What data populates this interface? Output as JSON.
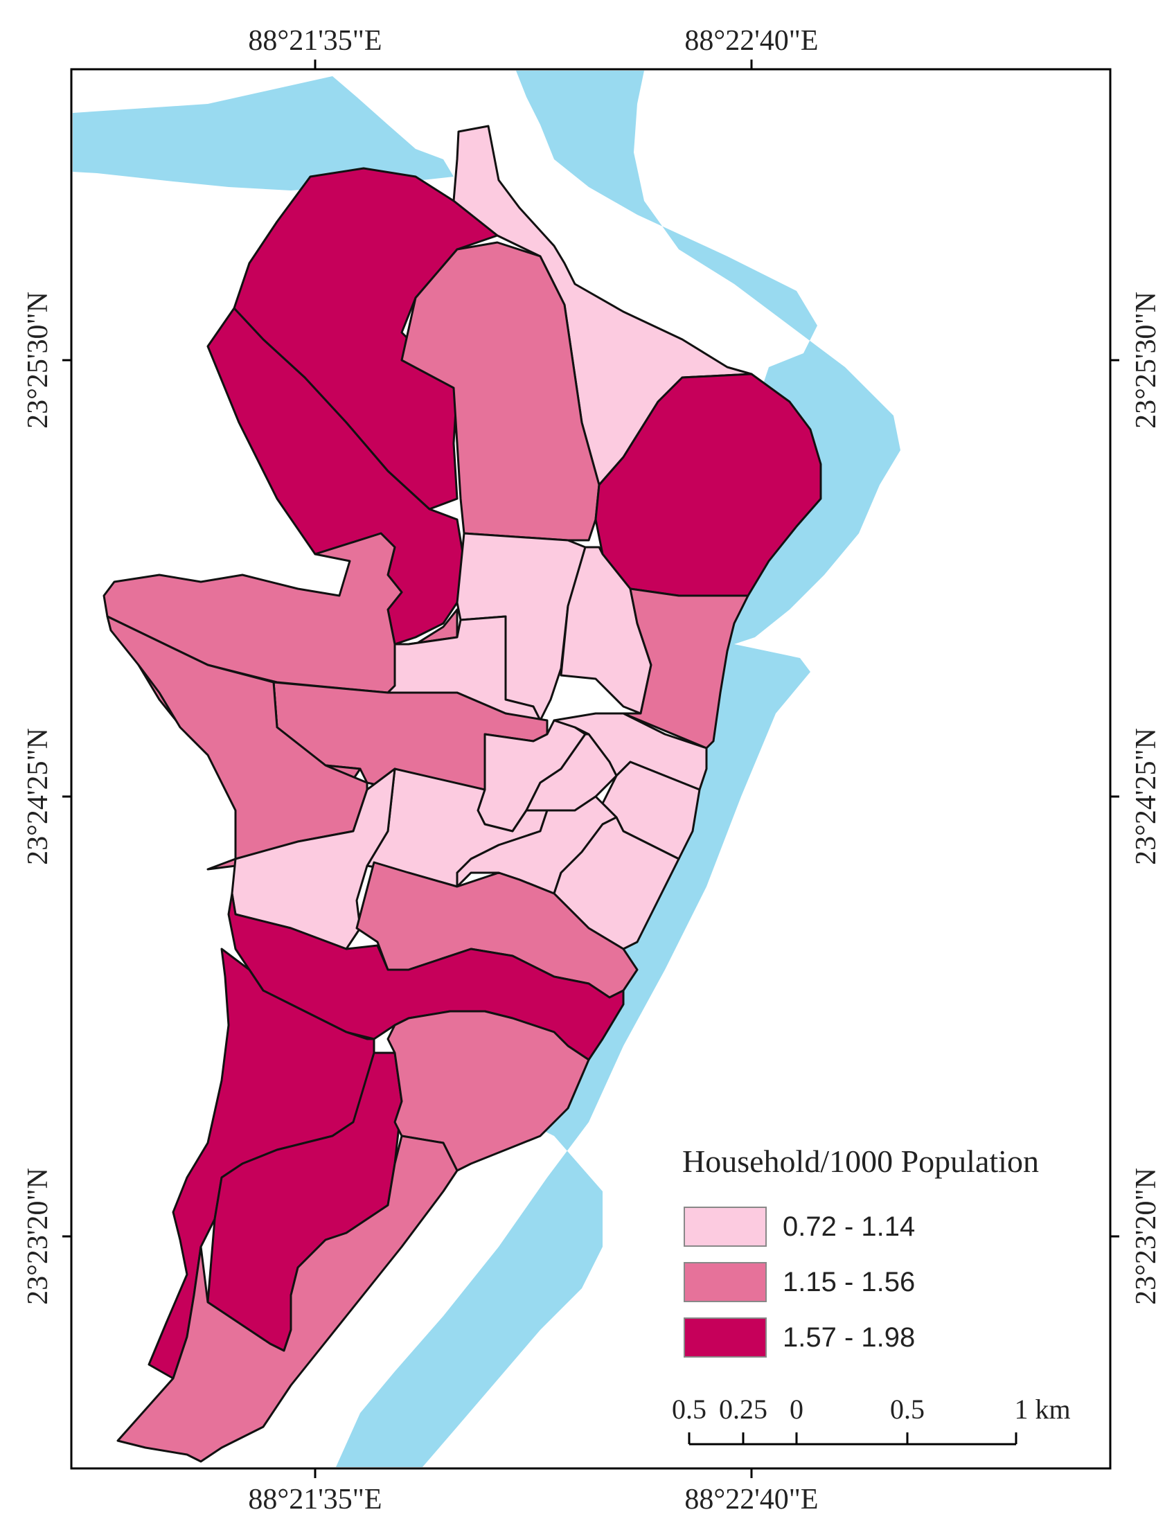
{
  "coordinates": {
    "top_labels": [
      "88°21'35\"E",
      "88°22'40\"E"
    ],
    "bottom_labels": [
      "88°21'35\"E",
      "88°22'40\"E"
    ],
    "left_labels": [
      "23°25'30\"N",
      "23°24'25\"N",
      "23°23'20\"N"
    ],
    "right_labels": [
      "23°25'30\"N",
      "23°24'25\"N",
      "23°23'20\"N"
    ]
  },
  "legend": {
    "title": "Household/1000 Population",
    "classes": [
      {
        "label": "0.72 - 1.14",
        "color": "#fccbe0"
      },
      {
        "label": "1.15 - 1.56",
        "color": "#e6729a"
      },
      {
        "label": "1.57 - 1.98",
        "color": "#c6005a"
      }
    ]
  },
  "scale_bar": {
    "labels": [
      "0.5",
      "0.25",
      "0",
      "0.5",
      "1 km"
    ]
  },
  "colors": {
    "river": "#99daf0",
    "boundary": "#111111",
    "frame": "#000000"
  }
}
